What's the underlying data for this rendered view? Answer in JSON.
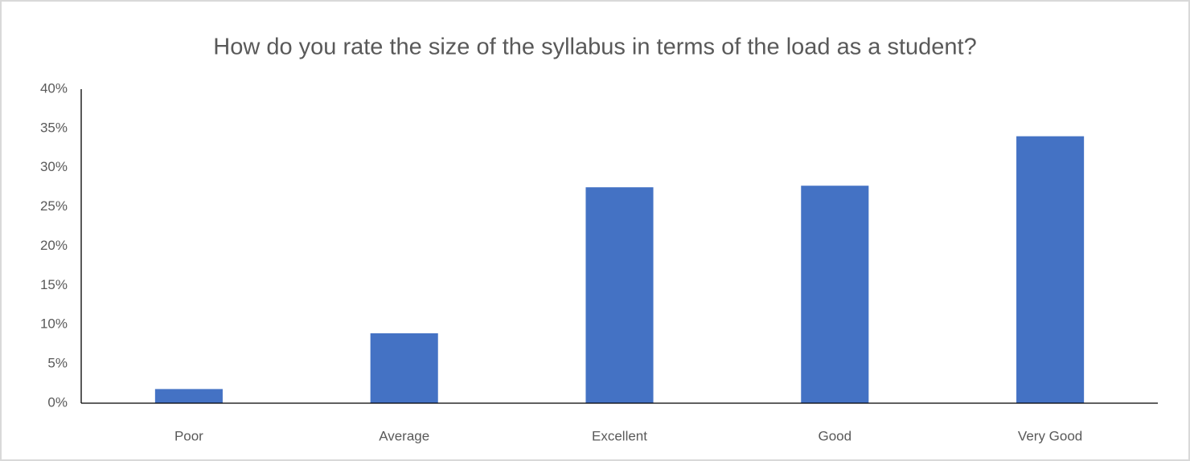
{
  "chart_data": {
    "type": "bar",
    "title": "How do you rate the size of the syllabus in terms of the load as a student?",
    "categories": [
      "Poor",
      "Average",
      "Excellent",
      "Good",
      "Very Good"
    ],
    "values": [
      1.8,
      8.9,
      27.5,
      27.7,
      34.0
    ],
    "color": "#4472c4",
    "ylim": [
      0,
      40
    ],
    "yticks": [
      {
        "value": 0,
        "label": "0%"
      },
      {
        "value": 5,
        "label": "5%"
      },
      {
        "value": 10,
        "label": "10%"
      },
      {
        "value": 15,
        "label": "15%"
      },
      {
        "value": 20,
        "label": "20%"
      },
      {
        "value": 25,
        "label": "25%"
      },
      {
        "value": 30,
        "label": "30%"
      },
      {
        "value": 35,
        "label": "35%"
      },
      {
        "value": 40,
        "label": "40%"
      }
    ],
    "grid": false
  }
}
